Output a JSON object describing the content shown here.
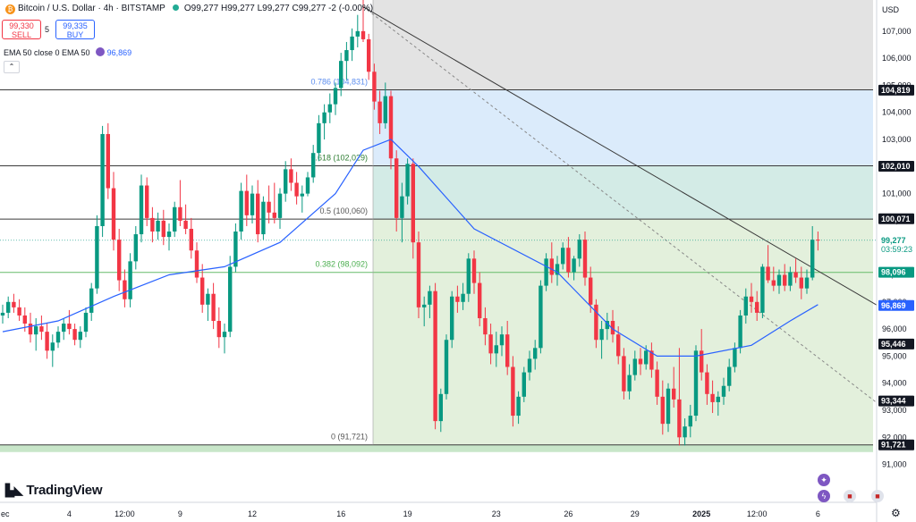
{
  "header": {
    "symbol": "Bitcoin / U.S. Dollar · 4h · BITSTAMP",
    "ohlc": "O99,277 H99,277 L99,277 C99,277 -2 (-0.00%)",
    "sell_price": "99,330",
    "sell_label": "SELL",
    "spread": "5",
    "buy_price": "99,335",
    "buy_label": "BUY",
    "indicator_label": "EMA 50 close 0 EMA 50",
    "indicator_value": "96,869",
    "collapse_glyph": "⌃",
    "coin_glyph": "₿",
    "currency": "USD"
  },
  "branding": {
    "logo_text": "TradingView",
    "logo_mark": "▙◣"
  },
  "colors": {
    "bull": "#089981",
    "bear": "#f23645",
    "ema": "#2962ff",
    "fib_gray": "#e3e3e3",
    "fib_blue": "#dbebfb",
    "fib_teal": "#d3ebe6",
    "fib_green": "#e3f0dc",
    "fib_line_dark": "#3a3a3a",
    "fib_line_green": "#66bb6a",
    "price_tag_current": "#089981",
    "price_tag_ema": "#2962ff",
    "price_tag_dark": "#131722"
  },
  "icons": {
    "star": "star-icon",
    "flash": "flash-icon",
    "flag": "us-flag-icon",
    "settings": "gear-icon"
  },
  "chart_data": {
    "type": "candlestick",
    "x_tick_labels": [
      "ec",
      "4",
      "12:00",
      "9",
      "12",
      "16",
      "19",
      "23",
      "26",
      "29",
      "2025",
      "12:00",
      "6"
    ],
    "y_ticks": [
      91000,
      92000,
      93000,
      94000,
      95000,
      96000,
      97000,
      98000,
      99000,
      100000,
      101000,
      102000,
      103000,
      104000,
      105000,
      106000,
      107000
    ],
    "y_tick_labels": [
      "91,000",
      "92,000",
      "93,000",
      "94,000",
      "95,000",
      "96,000",
      "97,000",
      "98,000",
      "99,000",
      "100,000",
      "101,000",
      "102,000",
      "103,000",
      "104,000",
      "105,000",
      "106,000",
      "107,000"
    ],
    "ylim": [
      89600,
      108150
    ],
    "fibonacci": [
      {
        "label": "0.786 (104,831)",
        "price": 104831
      },
      {
        "label": "0.618 (102,029)",
        "price": 102029
      },
      {
        "label": "0.5 (100,060)",
        "price": 100060
      },
      {
        "label": "0.382 (98,092)",
        "price": 98092
      },
      {
        "label": "0 (91,721)",
        "price": 91721
      }
    ],
    "fib_top_price": 108150,
    "price_tags": [
      {
        "label": "104,819",
        "price": 104819,
        "kind": "dark"
      },
      {
        "label": "102,010",
        "price": 102010,
        "kind": "dark"
      },
      {
        "label": "100,071",
        "price": 100071,
        "kind": "dark"
      },
      {
        "label": "99,277",
        "price": 99277,
        "kind": "current",
        "sub": "03:59:23"
      },
      {
        "label": "98,096",
        "price": 98096,
        "kind": "green"
      },
      {
        "label": "96,869",
        "price": 96869,
        "kind": "ema"
      },
      {
        "label": "95,446",
        "price": 95446,
        "kind": "dark"
      },
      {
        "label": "93,344",
        "price": 93344,
        "kind": "dark"
      },
      {
        "label": "91,721",
        "price": 91721,
        "kind": "dark"
      }
    ],
    "candles": [
      [
        96500,
        96900,
        96200,
        96600
      ],
      [
        96600,
        97200,
        96400,
        97000
      ],
      [
        97000,
        97300,
        96600,
        96800
      ],
      [
        96800,
        97100,
        96300,
        96500
      ],
      [
        96500,
        96800,
        95900,
        96200
      ],
      [
        96200,
        96600,
        95500,
        95800
      ],
      [
        95800,
        96400,
        95200,
        96100
      ],
      [
        96100,
        96500,
        95600,
        95900
      ],
      [
        95900,
        96200,
        94900,
        95200
      ],
      [
        95200,
        95800,
        94600,
        95500
      ],
      [
        95500,
        96100,
        95300,
        95900
      ],
      [
        95900,
        96400,
        95600,
        96200
      ],
      [
        96200,
        96700,
        95800,
        96000
      ],
      [
        96000,
        96200,
        95400,
        95600
      ],
      [
        95600,
        96100,
        95300,
        95900
      ],
      [
        95900,
        96800,
        95700,
        96600
      ],
      [
        96600,
        97700,
        96300,
        97500
      ],
      [
        97500,
        100200,
        97300,
        99800
      ],
      [
        99800,
        103500,
        99400,
        103200
      ],
      [
        103200,
        103600,
        100800,
        101200
      ],
      [
        101200,
        101800,
        98900,
        99300
      ],
      [
        99300,
        99700,
        97400,
        97800
      ],
      [
        97800,
        98200,
        96800,
        97100
      ],
      [
        97100,
        98800,
        96800,
        98500
      ],
      [
        98500,
        99800,
        98200,
        99500
      ],
      [
        99500,
        101700,
        99200,
        101300
      ],
      [
        101300,
        101600,
        99800,
        100100
      ],
      [
        100100,
        100500,
        99200,
        99600
      ],
      [
        99600,
        100300,
        99300,
        100000
      ],
      [
        100000,
        100400,
        99100,
        99400
      ],
      [
        99400,
        99900,
        98900,
        99600
      ],
      [
        99600,
        100700,
        99400,
        100500
      ],
      [
        100500,
        101500,
        99800,
        100000
      ],
      [
        100000,
        100600,
        99500,
        99700
      ],
      [
        99700,
        100100,
        98600,
        98900
      ],
      [
        98900,
        99200,
        97700,
        97900
      ],
      [
        97900,
        98400,
        96600,
        96900
      ],
      [
        96900,
        97500,
        96300,
        97300
      ],
      [
        97300,
        97700,
        96000,
        96300
      ],
      [
        96300,
        96800,
        95300,
        95700
      ],
      [
        95700,
        96200,
        95100,
        95900
      ],
      [
        95900,
        98700,
        95700,
        98300
      ],
      [
        98300,
        99900,
        98100,
        99600
      ],
      [
        99600,
        101400,
        99300,
        101100
      ],
      [
        101100,
        101700,
        99800,
        100200
      ],
      [
        100200,
        101300,
        99900,
        101000
      ],
      [
        101000,
        101500,
        99200,
        99500
      ],
      [
        99500,
        100900,
        99300,
        100700
      ],
      [
        100700,
        101300,
        99900,
        100300
      ],
      [
        100300,
        101400,
        99900,
        100100
      ],
      [
        100100,
        101200,
        99700,
        101000
      ],
      [
        101000,
        102200,
        100700,
        101900
      ],
      [
        101900,
        102300,
        101100,
        101400
      ],
      [
        101400,
        101800,
        100600,
        100900
      ],
      [
        100900,
        101300,
        100300,
        101000
      ],
      [
        101000,
        101800,
        100900,
        101600
      ],
      [
        101600,
        102800,
        101400,
        102500
      ],
      [
        102500,
        103900,
        102200,
        103600
      ],
      [
        103600,
        104300,
        103000,
        104000
      ],
      [
        104000,
        104700,
        103600,
        104300
      ],
      [
        104300,
        105100,
        103900,
        104900
      ],
      [
        104900,
        106200,
        104600,
        105900
      ],
      [
        105900,
        106600,
        105200,
        106300
      ],
      [
        106300,
        107100,
        105900,
        106800
      ],
      [
        106800,
        107600,
        106400,
        107000
      ],
      [
        107000,
        108200,
        106600,
        106700
      ],
      [
        106700,
        106900,
        105200,
        105500
      ],
      [
        105500,
        105800,
        104100,
        104400
      ],
      [
        104400,
        104800,
        103200,
        103600
      ],
      [
        103600,
        105100,
        103400,
        104600
      ],
      [
        104600,
        104800,
        101900,
        102300
      ],
      [
        102300,
        102600,
        99600,
        100100
      ],
      [
        100100,
        101400,
        99200,
        100900
      ],
      [
        100900,
        102300,
        100600,
        102100
      ],
      [
        102100,
        102300,
        98600,
        99200
      ],
      [
        99200,
        99600,
        96400,
        96800
      ],
      [
        96800,
        97200,
        96100,
        96900
      ],
      [
        96900,
        97600,
        96400,
        97400
      ],
      [
        97400,
        97700,
        92300,
        92600
      ],
      [
        92600,
        93800,
        92200,
        93600
      ],
      [
        93600,
        95800,
        93400,
        95600
      ],
      [
        95600,
        97400,
        95300,
        97200
      ],
      [
        97200,
        97600,
        96600,
        97000
      ],
      [
        97000,
        97700,
        96700,
        97300
      ],
      [
        97300,
        98800,
        97000,
        98600
      ],
      [
        98600,
        98900,
        97300,
        97700
      ],
      [
        97700,
        98100,
        96100,
        96400
      ],
      [
        96400,
        96800,
        95400,
        95800
      ],
      [
        95800,
        96200,
        94700,
        95100
      ],
      [
        95100,
        95900,
        94600,
        95400
      ],
      [
        95400,
        96100,
        95000,
        95800
      ],
      [
        95800,
        96300,
        94300,
        94600
      ],
      [
        94600,
        95000,
        92400,
        92800
      ],
      [
        92800,
        93700,
        92500,
        93500
      ],
      [
        93500,
        94600,
        93300,
        94400
      ],
      [
        94400,
        95200,
        94100,
        94900
      ],
      [
        94900,
        95600,
        94500,
        95300
      ],
      [
        95300,
        97800,
        95100,
        97600
      ],
      [
        97600,
        98800,
        97400,
        98600
      ],
      [
        98600,
        99200,
        97700,
        98000
      ],
      [
        98000,
        98700,
        97600,
        98400
      ],
      [
        98400,
        99200,
        98200,
        99000
      ],
      [
        99000,
        99400,
        97900,
        98100
      ],
      [
        98100,
        98700,
        97800,
        98600
      ],
      [
        98600,
        99500,
        98300,
        99300
      ],
      [
        99300,
        99600,
        97600,
        97900
      ],
      [
        97900,
        98300,
        96600,
        96900
      ],
      [
        96900,
        97100,
        95300,
        95600
      ],
      [
        95600,
        96300,
        94900,
        96000
      ],
      [
        96000,
        96600,
        95600,
        96300
      ],
      [
        96300,
        96700,
        95500,
        95800
      ],
      [
        95800,
        96100,
        94700,
        95000
      ],
      [
        95000,
        95300,
        93400,
        93700
      ],
      [
        93700,
        94700,
        93400,
        94300
      ],
      [
        94300,
        95200,
        94100,
        94900
      ],
      [
        94900,
        95300,
        94300,
        94700
      ],
      [
        94700,
        95400,
        94500,
        95200
      ],
      [
        95200,
        95500,
        94200,
        94500
      ],
      [
        94500,
        94800,
        93200,
        93500
      ],
      [
        93500,
        94100,
        92100,
        92500
      ],
      [
        92500,
        94000,
        92200,
        93800
      ],
      [
        93800,
        94600,
        93100,
        93400
      ],
      [
        93400,
        95300,
        91700,
        92000
      ],
      [
        92000,
        92700,
        91700,
        92400
      ],
      [
        92400,
        93200,
        92000,
        92800
      ],
      [
        92800,
        95400,
        92600,
        95200
      ],
      [
        95200,
        96000,
        94100,
        94400
      ],
      [
        94400,
        94700,
        93200,
        93600
      ],
      [
        93600,
        94100,
        92900,
        93300
      ],
      [
        93300,
        93700,
        92800,
        93500
      ],
      [
        93500,
        94200,
        93200,
        93900
      ],
      [
        93900,
        94900,
        93700,
        94600
      ],
      [
        94600,
        95500,
        94400,
        95300
      ],
      [
        95300,
        96700,
        95100,
        96500
      ],
      [
        96500,
        97500,
        96200,
        97200
      ],
      [
        97200,
        97700,
        96600,
        97000
      ],
      [
        97000,
        97400,
        96300,
        96600
      ],
      [
        96600,
        98400,
        96400,
        98300
      ],
      [
        98300,
        99100,
        97700,
        97800
      ],
      [
        97800,
        98300,
        97400,
        97600
      ],
      [
        97600,
        98200,
        97300,
        98000
      ],
      [
        98000,
        98400,
        97400,
        97600
      ],
      [
        97600,
        98300,
        97400,
        98100
      ],
      [
        98100,
        98600,
        97700,
        97900
      ],
      [
        97900,
        98300,
        97100,
        97500
      ],
      [
        97500,
        98200,
        97300,
        97900
      ],
      [
        97900,
        99800,
        97800,
        99300
      ],
      [
        99300,
        99600,
        98900,
        99277
      ]
    ],
    "ema50": [
      [
        0,
        95900
      ],
      [
        10,
        96300
      ],
      [
        20,
        97200
      ],
      [
        30,
        98000
      ],
      [
        40,
        98300
      ],
      [
        50,
        99200
      ],
      [
        60,
        101000
      ],
      [
        65,
        102600
      ],
      [
        70,
        103000
      ],
      [
        75,
        102000
      ],
      [
        85,
        99700
      ],
      [
        100,
        98100
      ],
      [
        110,
        96000
      ],
      [
        118,
        95000
      ],
      [
        125,
        95000
      ],
      [
        135,
        95400
      ],
      [
        142,
        96300
      ],
      [
        147,
        96900
      ]
    ],
    "trendline_solid": {
      "from": [
        65,
        107900
      ],
      "to": [
        160,
        96600
      ]
    },
    "trendline_dashed": {
      "from": [
        65,
        107900
      ],
      "to": [
        160,
        92900
      ]
    }
  }
}
